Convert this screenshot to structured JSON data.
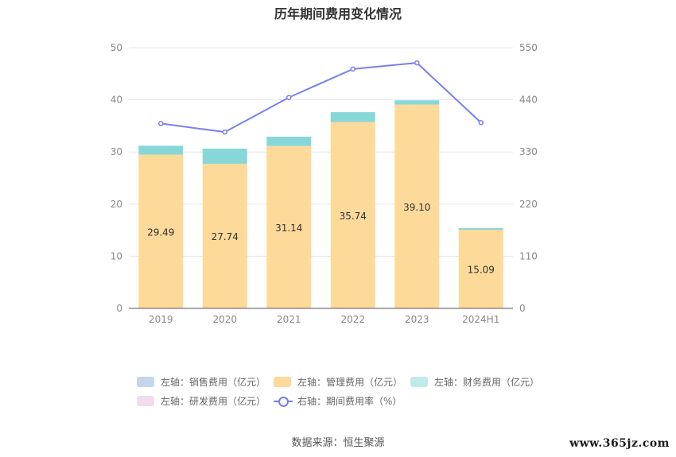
{
  "title": "历年期间费用变化情况",
  "source": "数据来源：恒生聚源",
  "watermark": "www.365jz.com",
  "chart_data": {
    "type": "bar",
    "stacked": true,
    "categories": [
      "2019",
      "2020",
      "2021",
      "2022",
      "2023",
      "2024H1"
    ],
    "y_left": {
      "ticks": [
        0,
        10,
        20,
        30,
        40,
        50
      ],
      "ylim": [
        0,
        50
      ]
    },
    "y_right": {
      "ticks": [
        0,
        110,
        220,
        330,
        440,
        550
      ],
      "ylim": [
        0,
        550
      ]
    },
    "grid": true,
    "legend_position": "bottom",
    "series": [
      {
        "name": "左轴：销售费用（亿元）",
        "axis": "left",
        "type": "bar",
        "color": "#c5d5ee",
        "values": [
          0,
          0,
          0,
          0,
          0,
          0
        ]
      },
      {
        "name": "左轴：管理费用（亿元）",
        "axis": "left",
        "type": "bar",
        "color": "#fdd99a",
        "values": [
          29.49,
          27.74,
          31.14,
          35.74,
          39.1,
          15.09
        ],
        "show_labels": true
      },
      {
        "name": "左轴：财务费用（亿元）",
        "axis": "left",
        "type": "bar",
        "color": "#88d7d8",
        "values": [
          1.7,
          2.9,
          1.8,
          1.9,
          0.8,
          0.3
        ]
      },
      {
        "name": "左轴：研发费用（亿元）",
        "axis": "left",
        "type": "bar",
        "color": "#f1dcec",
        "values": [
          0,
          0,
          0,
          0,
          0,
          0
        ]
      },
      {
        "name": "右轴：期间费用率（%）",
        "axis": "right",
        "type": "line",
        "color": "#7b7ef0",
        "values": [
          390,
          372,
          445,
          505,
          518,
          392
        ]
      }
    ]
  }
}
